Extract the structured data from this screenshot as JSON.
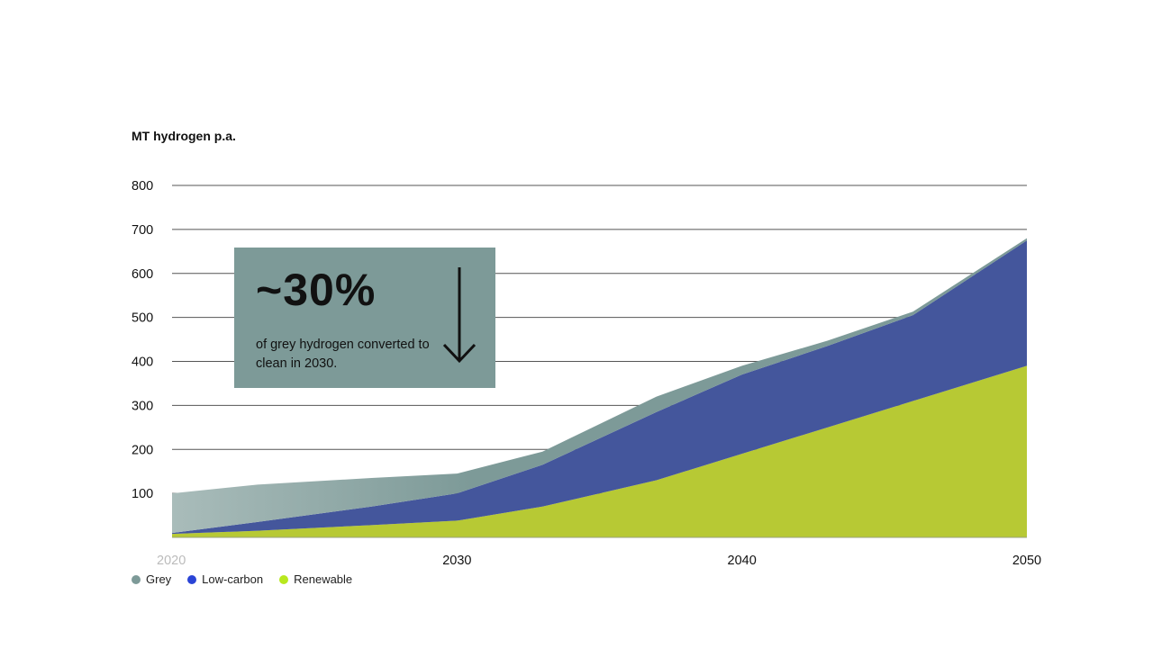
{
  "chart_data": {
    "type": "area",
    "stacked": true,
    "ylabel": "MT hydrogen p.a.",
    "yticks": [
      100,
      200,
      300,
      400,
      500,
      600,
      700,
      800
    ],
    "ylim": [
      0,
      800
    ],
    "xticks": [
      "2020",
      "2030",
      "2040",
      "2050"
    ],
    "xlim": [
      2020,
      2050
    ],
    "grid": true,
    "legend_position": "bottom-left",
    "x": [
      2020,
      2023,
      2027,
      2030,
      2033,
      2037,
      2040,
      2043,
      2046,
      2050
    ],
    "series": [
      {
        "name": "Renewable",
        "color": "#b7c934",
        "values": [
          8,
          15,
          28,
          38,
          70,
          130,
          190,
          250,
          310,
          390
        ]
      },
      {
        "name": "Low-carbon",
        "color": "#44569c",
        "values": [
          2,
          20,
          42,
          62,
          95,
          155,
          180,
          185,
          195,
          285
        ]
      },
      {
        "name": "Grey",
        "color": "#7d9a98",
        "values": [
          90,
          85,
          65,
          45,
          30,
          35,
          20,
          12,
          8,
          5
        ]
      }
    ],
    "annotation": {
      "value": "~30%",
      "text": "of grey hydrogen converted to clean in 2030."
    }
  },
  "legend": [
    {
      "label": "Grey",
      "color": "#7d9a98"
    },
    {
      "label": "Low-carbon",
      "color": "#2a44d6"
    },
    {
      "label": "Renewable",
      "color": "#b8e81e"
    }
  ]
}
